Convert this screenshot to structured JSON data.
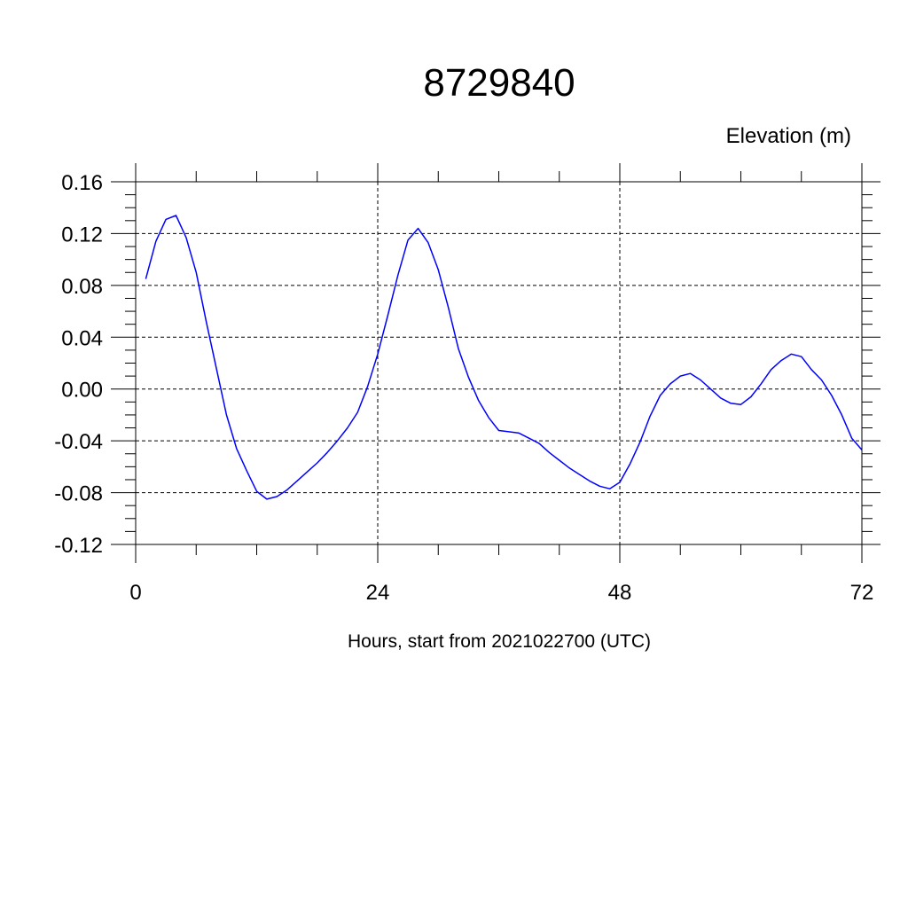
{
  "chart_data": {
    "type": "line",
    "title": "8729840",
    "ylabel": "Elevation (m)",
    "xlabel": "Hours, start from 2021022700 (UTC)",
    "xlim": [
      0,
      72
    ],
    "ylim": [
      -0.12,
      0.16
    ],
    "x_ticks": [
      0,
      24,
      48,
      72
    ],
    "y_ticks": [
      -0.12,
      -0.08,
      -0.04,
      0.0,
      0.04,
      0.08,
      0.12,
      0.16
    ],
    "y_tick_labels": [
      "-0.12",
      "-0.08",
      "-0.04",
      "0.00",
      "0.04",
      "0.08",
      "0.12",
      "0.16"
    ],
    "grid": true,
    "line_color": "#0000ff",
    "series": [
      {
        "x": [
          1,
          2,
          3,
          4,
          5,
          6,
          7,
          8,
          9,
          10,
          11,
          12,
          13,
          14,
          15,
          16,
          17,
          18,
          19,
          20,
          21,
          22,
          23,
          24,
          25,
          26,
          27,
          28,
          29,
          30,
          31,
          32,
          33,
          34,
          35,
          36,
          37,
          38,
          39,
          40,
          41,
          42,
          43,
          44,
          45,
          46,
          47,
          48,
          49,
          50,
          51,
          52,
          53,
          54,
          55,
          56,
          57,
          58,
          59,
          60,
          61,
          62,
          63,
          64,
          65,
          66,
          67,
          68,
          69,
          70,
          71,
          72
        ],
        "values": [
          0.085,
          0.114,
          0.131,
          0.134,
          0.117,
          0.09,
          0.052,
          0.016,
          -0.02,
          -0.046,
          -0.063,
          -0.079,
          -0.085,
          -0.083,
          -0.078,
          -0.071,
          -0.064,
          -0.057,
          -0.049,
          -0.04,
          -0.03,
          -0.018,
          0.002,
          0.027,
          0.057,
          0.088,
          0.115,
          0.124,
          0.113,
          0.092,
          0.063,
          0.031,
          0.009,
          -0.009,
          -0.022,
          -0.032,
          -0.033,
          -0.034,
          -0.038,
          -0.042,
          -0.049,
          -0.055,
          -0.061,
          -0.066,
          -0.071,
          -0.075,
          -0.077,
          -0.072,
          -0.058,
          -0.041,
          -0.021,
          -0.005,
          0.004,
          0.01,
          0.012,
          0.007,
          0.0,
          -0.007,
          -0.011,
          -0.012,
          -0.006,
          0.004,
          0.015,
          0.022,
          0.027,
          0.025,
          0.015,
          0.007,
          -0.005,
          -0.02,
          -0.038,
          -0.047
        ]
      }
    ]
  }
}
